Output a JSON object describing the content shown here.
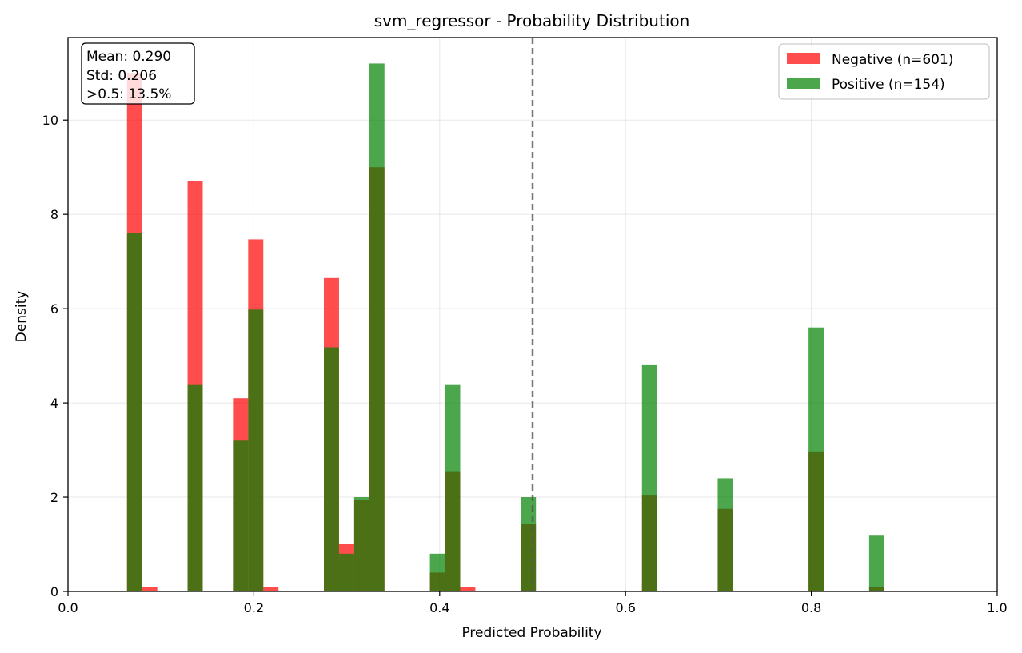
{
  "chart_data": {
    "type": "bar",
    "title": "svm_regressor - Probability Distribution",
    "xlabel": "Predicted Probability",
    "ylabel": "Density",
    "xlim": [
      0.0,
      1.0
    ],
    "ylim": [
      0,
      11.75
    ],
    "xticks": [
      "0.0",
      "0.2",
      "0.4",
      "0.6",
      "0.8",
      "1.0"
    ],
    "xtick_values": [
      0.0,
      0.2,
      0.4,
      0.6,
      0.8,
      1.0
    ],
    "yticks": [
      "0",
      "2",
      "4",
      "6",
      "8",
      "10"
    ],
    "ytick_values": [
      0,
      2,
      4,
      6,
      8,
      10
    ],
    "grid": true,
    "legend_position": "top-right",
    "threshold": 0.5,
    "series": [
      {
        "name": "Negative (n=601)",
        "color": "#ff0000",
        "opacity": 0.7,
        "bins": [
          {
            "x0": 0.0635,
            "x1": 0.0798,
            "y": 11.0
          },
          {
            "x0": 0.0798,
            "x1": 0.0961,
            "y": 0.1
          },
          {
            "x0": 0.1287,
            "x1": 0.145,
            "y": 8.7
          },
          {
            "x0": 0.1776,
            "x1": 0.1939,
            "y": 4.1
          },
          {
            "x0": 0.1939,
            "x1": 0.2102,
            "y": 7.47
          },
          {
            "x0": 0.2102,
            "x1": 0.2265,
            "y": 0.1
          },
          {
            "x0": 0.2754,
            "x1": 0.2917,
            "y": 6.65
          },
          {
            "x0": 0.2917,
            "x1": 0.308,
            "y": 1.0
          },
          {
            "x0": 0.308,
            "x1": 0.3243,
            "y": 1.95
          },
          {
            "x0": 0.3243,
            "x1": 0.3406,
            "y": 9.0
          },
          {
            "x0": 0.3895,
            "x1": 0.4058,
            "y": 0.4
          },
          {
            "x0": 0.4058,
            "x1": 0.4221,
            "y": 2.55
          },
          {
            "x0": 0.4221,
            "x1": 0.4384,
            "y": 0.1
          },
          {
            "x0": 0.4873,
            "x1": 0.5036,
            "y": 1.43
          },
          {
            "x0": 0.6177,
            "x1": 0.634,
            "y": 2.05
          },
          {
            "x0": 0.6992,
            "x1": 0.7155,
            "y": 1.75
          },
          {
            "x0": 0.797,
            "x1": 0.8133,
            "y": 2.97
          },
          {
            "x0": 0.8622,
            "x1": 0.8785,
            "y": 0.1
          }
        ]
      },
      {
        "name": "Positive (n=154)",
        "color": "#008000",
        "opacity": 0.7,
        "bins": [
          {
            "x0": 0.0635,
            "x1": 0.0798,
            "y": 7.6
          },
          {
            "x0": 0.1287,
            "x1": 0.145,
            "y": 4.38
          },
          {
            "x0": 0.1776,
            "x1": 0.1939,
            "y": 3.2
          },
          {
            "x0": 0.1939,
            "x1": 0.2102,
            "y": 5.98
          },
          {
            "x0": 0.2754,
            "x1": 0.2917,
            "y": 5.18
          },
          {
            "x0": 0.2917,
            "x1": 0.308,
            "y": 0.8
          },
          {
            "x0": 0.308,
            "x1": 0.3243,
            "y": 2.0
          },
          {
            "x0": 0.3243,
            "x1": 0.3406,
            "y": 11.2
          },
          {
            "x0": 0.3895,
            "x1": 0.4058,
            "y": 0.8
          },
          {
            "x0": 0.4058,
            "x1": 0.4221,
            "y": 4.38
          },
          {
            "x0": 0.4873,
            "x1": 0.5036,
            "y": 2.0
          },
          {
            "x0": 0.6177,
            "x1": 0.634,
            "y": 4.8
          },
          {
            "x0": 0.6992,
            "x1": 0.7155,
            "y": 2.4
          },
          {
            "x0": 0.797,
            "x1": 0.8133,
            "y": 5.6
          },
          {
            "x0": 0.8622,
            "x1": 0.8785,
            "y": 1.2
          }
        ]
      }
    ],
    "stats_box": [
      "Mean: 0.290",
      "Std: 0.206",
      ">0.5: 13.5%"
    ]
  }
}
